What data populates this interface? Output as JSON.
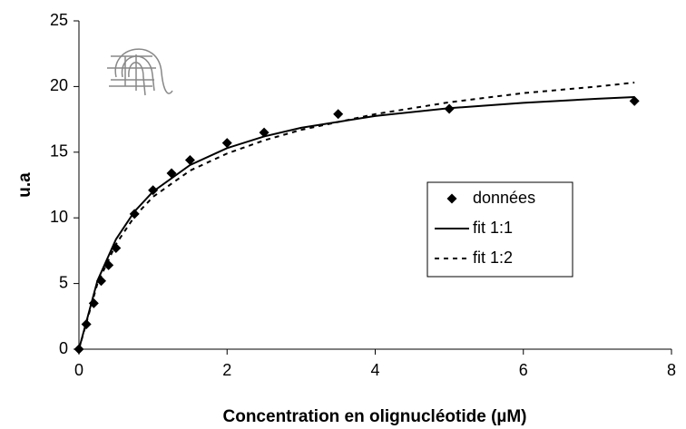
{
  "chart_data": {
    "type": "scatter",
    "x_label": "Concentration en olignucléotide (µM)",
    "y_label": "u.a",
    "xlim": [
      0,
      8
    ],
    "xticks": [
      0,
      2,
      4,
      6,
      8
    ],
    "ylim": [
      0,
      25
    ],
    "yticks": [
      0,
      5,
      10,
      15,
      20,
      25
    ],
    "grid": false,
    "legend_position": "right",
    "series": [
      {
        "name": "données",
        "color": "#000000",
        "style": "marker",
        "x": [
          0,
          0.1,
          0.2,
          0.3,
          0.4,
          0.5,
          0.75,
          1,
          1.25,
          1.5,
          2,
          2.5,
          3.5,
          5,
          7.5
        ],
        "values": [
          0,
          1.9,
          3.5,
          5.2,
          6.4,
          7.7,
          10.3,
          12.1,
          13.4,
          14.4,
          15.7,
          16.5,
          17.9,
          18.3,
          18.9
        ]
      },
      {
        "name": "fit 1:1",
        "color": "#000000",
        "style": "solid",
        "x": [
          0,
          0.25,
          0.5,
          0.75,
          1,
          1.5,
          2,
          2.5,
          3,
          4,
          5,
          6,
          7,
          7.5
        ],
        "values": [
          0,
          5.22,
          8.37,
          10.48,
          12.0,
          14.02,
          15.31,
          16.2,
          16.86,
          17.76,
          18.35,
          18.76,
          19.07,
          19.2
        ]
      },
      {
        "name": "fit 1:2",
        "color": "#000000",
        "style": "dashed",
        "x": [
          0,
          0.25,
          0.5,
          0.75,
          1,
          1.5,
          2,
          2.5,
          3,
          4,
          5,
          6,
          7,
          7.5
        ],
        "values": [
          0,
          5.0,
          8.0,
          10.1,
          11.6,
          13.6,
          14.9,
          15.9,
          16.7,
          17.9,
          18.8,
          19.5,
          20.0,
          20.3
        ]
      }
    ]
  }
}
